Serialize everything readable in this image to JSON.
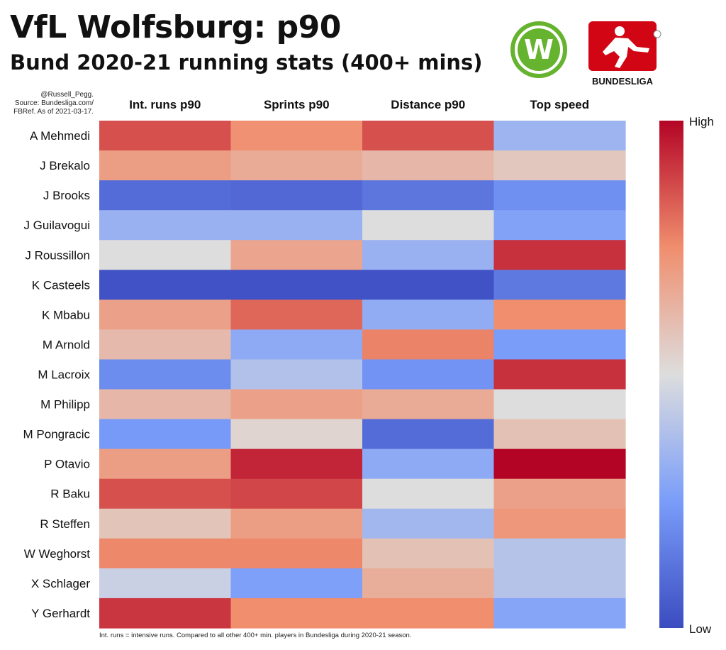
{
  "title": "VfL Wolfsburg: p90",
  "subtitle": "Bund 2020-21 running stats (400+ mins)",
  "credit": [
    "@Russell_Pegg.",
    "Source: Bundesliga.com/",
    "FBRef. As of 2021-03-17."
  ],
  "footnote": "Int. runs = intensive runs. Compared to all other 400+ min. players in Bundesliga during 2020-21 season.",
  "logos": {
    "bundesliga_wordmark": "BUNDESLIGA",
    "wolfsburg_letter": "W"
  },
  "colors": {
    "low": "#3b4cc0",
    "mid": "#dddddd",
    "high": "#b40426",
    "wolfsburg_green": "#65b32e",
    "bundesliga_red": "#d20515"
  },
  "chart_data": {
    "type": "heatmap",
    "columns": [
      "Int. runs p90",
      "Sprints p90",
      "Distance p90",
      "Top speed"
    ],
    "rows": [
      "A Mehmedi",
      "J Brekalo",
      "J Brooks",
      "J Guilavogui",
      "J Roussillon",
      "K Casteels",
      "K Mbabu",
      "M Arnold",
      "M Lacroix",
      "M Philipp",
      "M Pongracic",
      "P Otavio",
      "R Baku",
      "R Steffen",
      "W Weghorst",
      "X Schlager",
      "Y Gerhardt"
    ],
    "values": [
      [
        0.86,
        0.74,
        0.86,
        0.34
      ],
      [
        0.7,
        0.66,
        0.62,
        0.57
      ],
      [
        0.1,
        0.09,
        0.13,
        0.21
      ],
      [
        0.33,
        0.33,
        0.5,
        0.27
      ],
      [
        0.5,
        0.68,
        0.33,
        0.92
      ],
      [
        0.02,
        0.02,
        0.02,
        0.14
      ],
      [
        0.69,
        0.82,
        0.31,
        0.75
      ],
      [
        0.61,
        0.3,
        0.77,
        0.25
      ],
      [
        0.2,
        0.39,
        0.22,
        0.92
      ],
      [
        0.62,
        0.69,
        0.66,
        0.5
      ],
      [
        0.24,
        0.53,
        0.1,
        0.59
      ],
      [
        0.7,
        0.94,
        0.3,
        1.0
      ],
      [
        0.86,
        0.88,
        0.5,
        0.69
      ],
      [
        0.58,
        0.7,
        0.35,
        0.72
      ],
      [
        0.76,
        0.76,
        0.59,
        0.4
      ],
      [
        0.45,
        0.26,
        0.65,
        0.4
      ],
      [
        0.91,
        0.75,
        0.75,
        0.28
      ]
    ],
    "vmin": 0,
    "vmax": 1,
    "colormap": "coolwarm",
    "colorbar": {
      "high_label": "High",
      "low_label": "Low"
    }
  }
}
